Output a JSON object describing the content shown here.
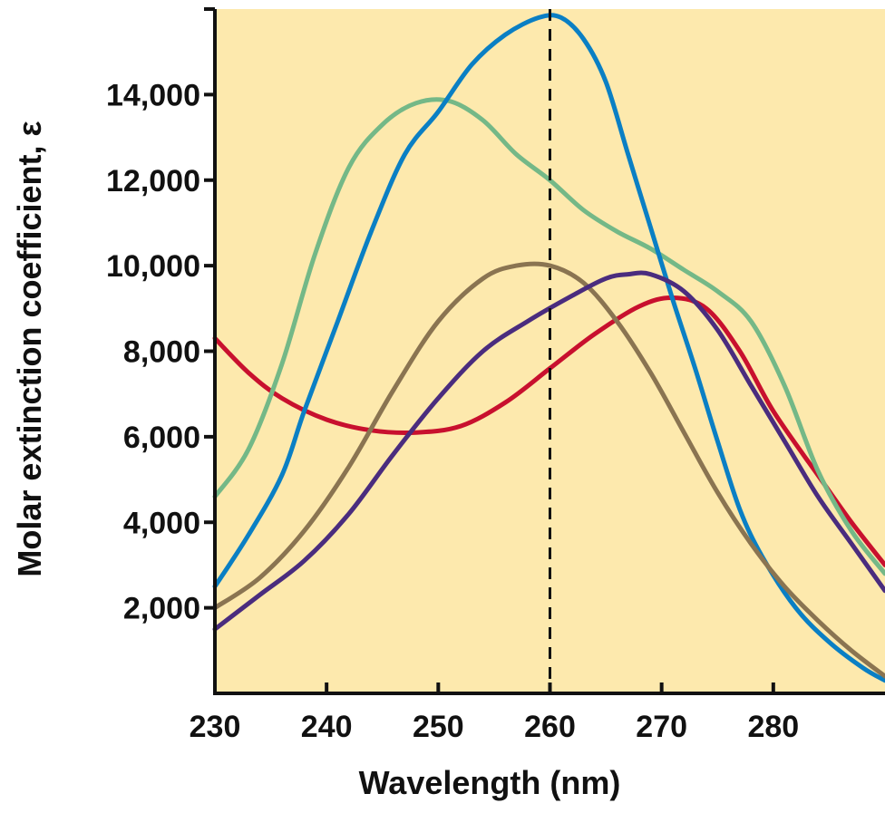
{
  "chart_data": {
    "type": "line",
    "title": "",
    "xlabel": "Wavelength  (nm)",
    "ylabel": "Molar  extinction  coefficient, ε",
    "xlim": [
      230,
      290
    ],
    "ylim": [
      0,
      16000
    ],
    "xticks": [
      230,
      240,
      250,
      260,
      270,
      280
    ],
    "xtick_labels": [
      "230",
      "240",
      "250",
      "260",
      "270",
      "280"
    ],
    "yticks": [
      2000,
      4000,
      6000,
      8000,
      10000,
      12000,
      14000
    ],
    "ytick_labels": [
      "2,000",
      "4,000",
      "6,000",
      "8,000",
      "10,000",
      "12,000",
      "14,000"
    ],
    "grid": false,
    "legend": false,
    "background_color": "#fde9ad",
    "reference_line": {
      "x": 260,
      "style": "dashed",
      "color": "#111111"
    },
    "series": [
      {
        "color": "#c8102e",
        "points": [
          [
            230,
            8300
          ],
          [
            233,
            7500
          ],
          [
            236,
            6900
          ],
          [
            240,
            6400
          ],
          [
            244,
            6150
          ],
          [
            248,
            6100
          ],
          [
            252,
            6250
          ],
          [
            256,
            6800
          ],
          [
            260,
            7600
          ],
          [
            264,
            8400
          ],
          [
            268,
            9050
          ],
          [
            271,
            9250
          ],
          [
            274,
            9000
          ],
          [
            277,
            8000
          ],
          [
            280,
            6600
          ],
          [
            284,
            5100
          ],
          [
            287,
            4000
          ],
          [
            290,
            3000
          ]
        ]
      },
      {
        "color": "#74b887",
        "points": [
          [
            230,
            4600
          ],
          [
            233,
            5700
          ],
          [
            236,
            7700
          ],
          [
            239,
            10300
          ],
          [
            242,
            12300
          ],
          [
            245,
            13300
          ],
          [
            248,
            13800
          ],
          [
            251,
            13850
          ],
          [
            254,
            13400
          ],
          [
            257,
            12600
          ],
          [
            260,
            12000
          ],
          [
            263,
            11300
          ],
          [
            266,
            10800
          ],
          [
            269,
            10400
          ],
          [
            272,
            9900
          ],
          [
            275,
            9400
          ],
          [
            278,
            8700
          ],
          [
            281,
            7200
          ],
          [
            284,
            5200
          ],
          [
            287,
            3800
          ],
          [
            290,
            2800
          ]
        ]
      },
      {
        "color": "#0a7fc4",
        "points": [
          [
            230,
            2500
          ],
          [
            233,
            3700
          ],
          [
            236,
            5100
          ],
          [
            238,
            6600
          ],
          [
            241,
            8700
          ],
          [
            244,
            10800
          ],
          [
            247,
            12600
          ],
          [
            250,
            13600
          ],
          [
            253,
            14700
          ],
          [
            256,
            15400
          ],
          [
            259,
            15800
          ],
          [
            261,
            15800
          ],
          [
            263,
            15300
          ],
          [
            265,
            14300
          ],
          [
            267,
            12600
          ],
          [
            269,
            10900
          ],
          [
            271,
            9200
          ],
          [
            273,
            7600
          ],
          [
            275,
            5900
          ],
          [
            277,
            4300
          ],
          [
            279,
            3200
          ],
          [
            282,
            2000
          ],
          [
            285,
            1200
          ],
          [
            288,
            600
          ],
          [
            290,
            300
          ]
        ]
      },
      {
        "color": "#8a7451",
        "points": [
          [
            230,
            2000
          ],
          [
            234,
            2700
          ],
          [
            238,
            3800
          ],
          [
            242,
            5300
          ],
          [
            246,
            7100
          ],
          [
            250,
            8700
          ],
          [
            254,
            9700
          ],
          [
            257,
            10000
          ],
          [
            260,
            10000
          ],
          [
            263,
            9600
          ],
          [
            266,
            8700
          ],
          [
            269,
            7500
          ],
          [
            272,
            6100
          ],
          [
            275,
            4700
          ],
          [
            278,
            3500
          ],
          [
            281,
            2500
          ],
          [
            284,
            1700
          ],
          [
            287,
            1000
          ],
          [
            290,
            400
          ]
        ]
      },
      {
        "color": "#4a2c7e",
        "points": [
          [
            230,
            1500
          ],
          [
            234,
            2300
          ],
          [
            238,
            3100
          ],
          [
            242,
            4200
          ],
          [
            246,
            5600
          ],
          [
            250,
            6900
          ],
          [
            254,
            8000
          ],
          [
            258,
            8700
          ],
          [
            262,
            9300
          ],
          [
            265,
            9700
          ],
          [
            267,
            9800
          ],
          [
            269,
            9800
          ],
          [
            272,
            9400
          ],
          [
            275,
            8500
          ],
          [
            278,
            7200
          ],
          [
            281,
            5900
          ],
          [
            284,
            4600
          ],
          [
            287,
            3500
          ],
          [
            290,
            2400
          ]
        ]
      }
    ]
  }
}
